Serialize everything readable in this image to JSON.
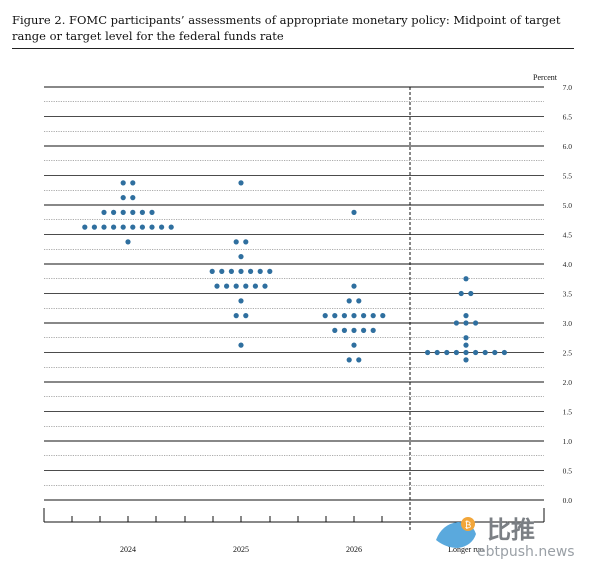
{
  "figure": {
    "title": "Figure 2.  FOMC participants’ assessments of appropriate monetary policy:  Midpoint of target range or target level for the federal funds rate"
  },
  "watermark": {
    "chinese": "比推",
    "url": "ebtpush.news"
  },
  "chart_data": {
    "type": "scatter",
    "unit_label": "Percent",
    "categories": [
      "2024",
      "2025",
      "2026",
      "Longer run"
    ],
    "ylim": [
      0.0,
      7.0
    ],
    "yticks": [
      "0.0",
      "0.5",
      "1.0",
      "1.5",
      "2.0",
      "2.5",
      "3.0",
      "3.5",
      "4.0",
      "4.5",
      "5.0",
      "5.5",
      "6.0",
      "6.5",
      "7.0"
    ],
    "grid": true,
    "dot_color": "#2f6f9f",
    "series": [
      {
        "category": "2024",
        "points": [
          {
            "y": 5.375,
            "count": 2
          },
          {
            "y": 5.125,
            "count": 2
          },
          {
            "y": 4.875,
            "count": 6
          },
          {
            "y": 4.625,
            "count": 10
          },
          {
            "y": 4.375,
            "count": 1
          }
        ]
      },
      {
        "category": "2025",
        "points": [
          {
            "y": 5.375,
            "count": 1
          },
          {
            "y": 4.375,
            "count": 2
          },
          {
            "y": 4.125,
            "count": 1
          },
          {
            "y": 3.875,
            "count": 7
          },
          {
            "y": 3.625,
            "count": 6
          },
          {
            "y": 3.375,
            "count": 1
          },
          {
            "y": 3.125,
            "count": 2
          },
          {
            "y": 2.625,
            "count": 1
          }
        ]
      },
      {
        "category": "2026",
        "points": [
          {
            "y": 4.875,
            "count": 1
          },
          {
            "y": 3.625,
            "count": 1
          },
          {
            "y": 3.375,
            "count": 2
          },
          {
            "y": 3.125,
            "count": 7
          },
          {
            "y": 2.875,
            "count": 5
          },
          {
            "y": 2.625,
            "count": 1
          },
          {
            "y": 2.375,
            "count": 2
          }
        ]
      },
      {
        "category": "Longer run",
        "points": [
          {
            "y": 3.75,
            "count": 1
          },
          {
            "y": 3.5,
            "count": 2
          },
          {
            "y": 3.125,
            "count": 1
          },
          {
            "y": 3.0,
            "count": 3
          },
          {
            "y": 2.75,
            "count": 1
          },
          {
            "y": 2.625,
            "count": 1
          },
          {
            "y": 2.5,
            "count": 9
          },
          {
            "y": 2.375,
            "count": 1
          }
        ]
      }
    ]
  }
}
